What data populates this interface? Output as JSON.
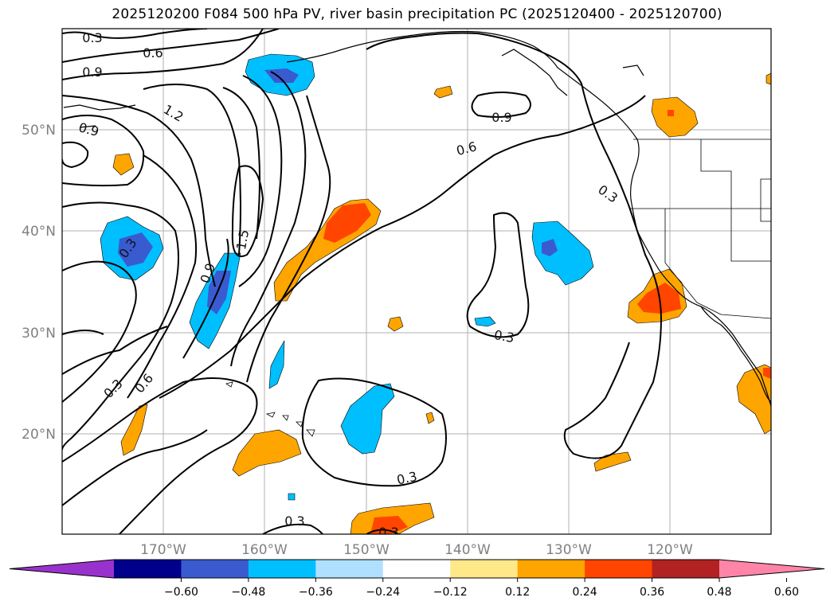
{
  "title": "2025120200 F084 500 hPa PV, river basin precipitation PC (2025120400 - 2025120700)",
  "map": {
    "lat_labels": [
      "50°N",
      "40°N",
      "30°N",
      "20°N"
    ],
    "lon_labels": [
      "170°W",
      "160°W",
      "150°W",
      "140°W",
      "130°W",
      "120°W"
    ],
    "contour_labels": [
      "0.3",
      "0.6",
      "0.9",
      "1.2",
      "0.9",
      "0.9",
      "0.6",
      "0.3",
      "0.3",
      "1.5",
      "0.9",
      "0.3",
      "0.6",
      "0.3",
      "0.3",
      "0.3",
      "0.3"
    ]
  },
  "colorbar": {
    "ticks": [
      "−0.60",
      "−0.48",
      "−0.36",
      "−0.24",
      "−0.12",
      "0.12",
      "0.24",
      "0.36",
      "0.48",
      "0.60"
    ],
    "colors": [
      "#9932cc",
      "#00008b",
      "#3a5bd0",
      "#00bfff",
      "#b0e0ff",
      "#ffffff",
      "#ffe88a",
      "#ffa500",
      "#ff4500",
      "#b22222",
      "#ff85a8"
    ]
  }
}
